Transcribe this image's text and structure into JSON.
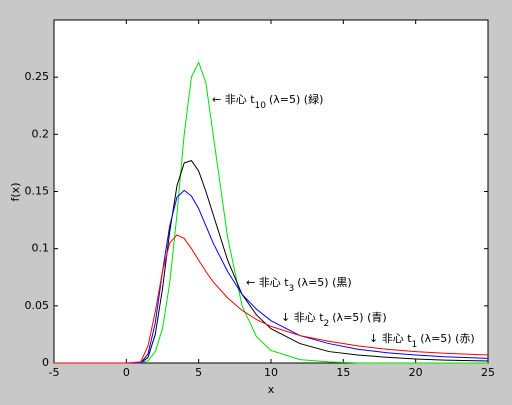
{
  "chart_data": {
    "type": "line",
    "xlabel": "x",
    "ylabel": "f(x)",
    "xlim": [
      -5,
      25
    ],
    "ylim": [
      0,
      0.3
    ],
    "xticks": [
      -5,
      0,
      5,
      10,
      15,
      20,
      25
    ],
    "yticks": [
      0,
      0.05,
      0.1,
      0.15,
      0.2,
      0.25
    ],
    "x": [
      -5,
      0,
      1,
      1.5,
      2,
      2.5,
      3,
      3.5,
      4,
      4.5,
      5,
      5.5,
      6,
      7,
      8,
      9,
      10,
      12,
      14,
      16,
      18,
      20,
      22,
      25
    ],
    "series": [
      {
        "color": "#00e000",
        "annotation": {
          "text": "← 非心 t",
          "sub": "10",
          "rest": "(λ=5) (緑)"
        },
        "values": [
          0,
          0,
          0,
          0.002,
          0.01,
          0.03,
          0.07,
          0.13,
          0.2,
          0.25,
          0.263,
          0.245,
          0.2,
          0.11,
          0.05,
          0.023,
          0.011,
          0.003,
          0.001,
          0,
          0,
          0,
          0,
          0
        ]
      },
      {
        "color": "#000000",
        "annotation": {
          "text": "← 非心 t",
          "sub": "3",
          "rest": "(λ=5) (黒)"
        },
        "values": [
          0,
          0,
          0,
          0.005,
          0.025,
          0.065,
          0.115,
          0.155,
          0.175,
          0.177,
          0.168,
          0.15,
          0.13,
          0.09,
          0.06,
          0.042,
          0.03,
          0.017,
          0.01,
          0.007,
          0.005,
          0.0035,
          0.0025,
          0.0017
        ]
      },
      {
        "color": "#0000ff",
        "annotation": {
          "text": "↓ 非心 t",
          "sub": "2",
          "rest": "(λ=5) (青)"
        },
        "values": [
          0,
          0,
          0,
          0.008,
          0.035,
          0.08,
          0.12,
          0.145,
          0.151,
          0.146,
          0.135,
          0.12,
          0.105,
          0.08,
          0.06,
          0.047,
          0.037,
          0.024,
          0.017,
          0.012,
          0.009,
          0.007,
          0.0055,
          0.004
        ]
      },
      {
        "color": "#ff0000",
        "annotation": {
          "text": "↓ 非心 t",
          "sub": "1",
          "rest": "(λ=5) (赤)"
        },
        "values": [
          0,
          0,
          0.001,
          0.015,
          0.045,
          0.08,
          0.105,
          0.112,
          0.109,
          0.1,
          0.09,
          0.08,
          0.071,
          0.057,
          0.046,
          0.038,
          0.032,
          0.024,
          0.019,
          0.015,
          0.012,
          0.01,
          0.0085,
          0.007
        ]
      }
    ]
  }
}
